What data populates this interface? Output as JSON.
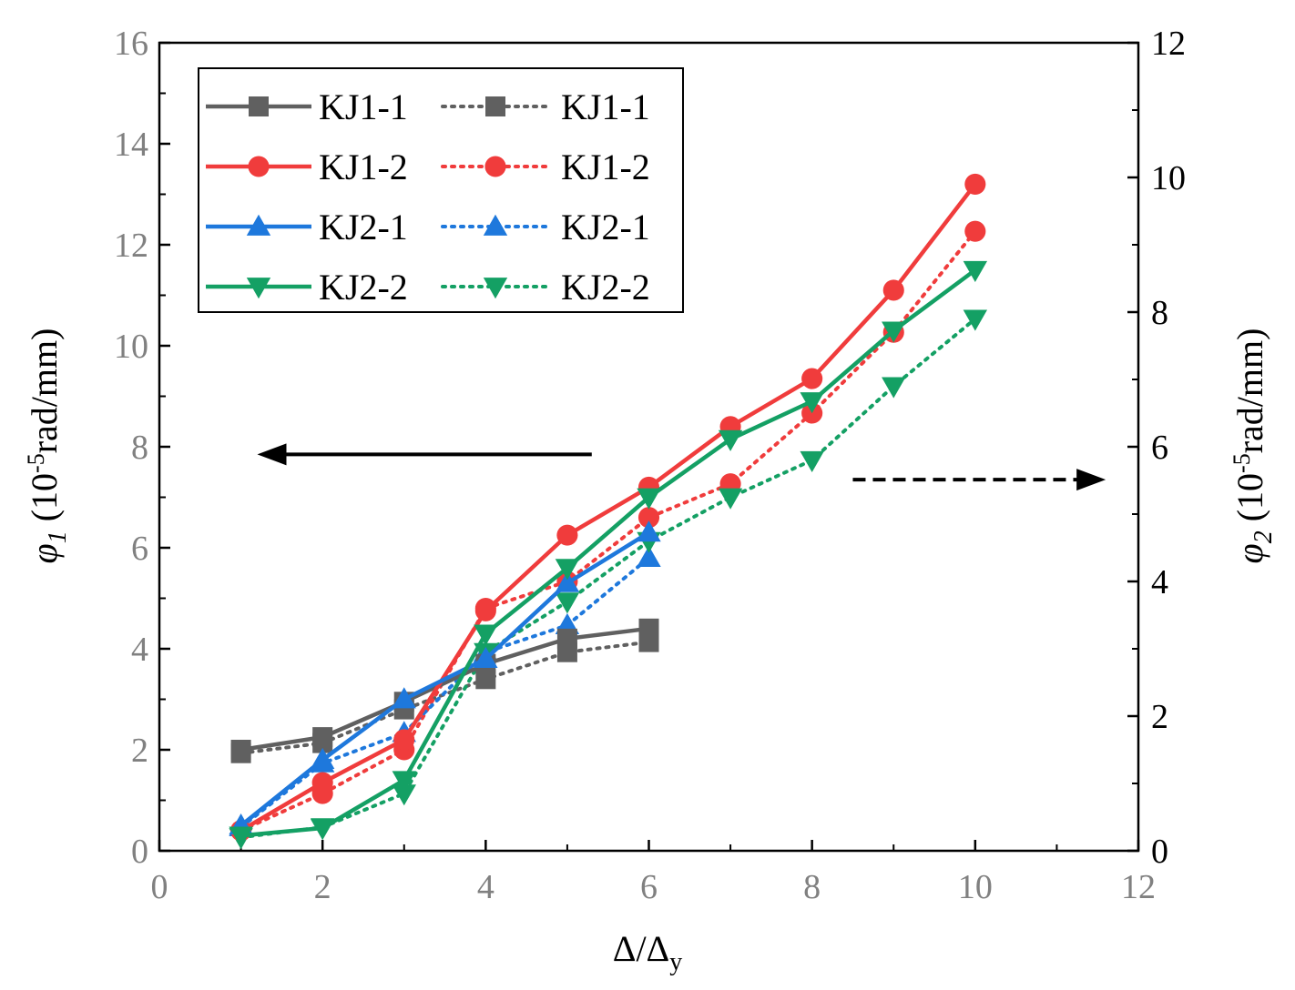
{
  "chart_data": {
    "type": "line",
    "xlabel": "Δ/Δy",
    "xlabel_parts": {
      "main": "Δ/Δ",
      "sub": "y"
    },
    "ylabel_left_parts": {
      "symbol": "φ",
      "sub": "1",
      "open": " (10",
      "sup": "-5",
      "close": "rad/mm)"
    },
    "ylabel_right_parts": {
      "symbol": "φ",
      "sub": "2",
      "open": " (10",
      "sup": "-5",
      "close": "rad/mm)"
    },
    "xlim": [
      0,
      12
    ],
    "ylim_left": [
      0,
      16
    ],
    "ylim_right": [
      0,
      12
    ],
    "xticks": [
      "0",
      "2",
      "4",
      "6",
      "8",
      "10",
      "12"
    ],
    "yticks_left": [
      "0",
      "2",
      "4",
      "6",
      "8",
      "10",
      "12",
      "14",
      "16"
    ],
    "yticks_right": [
      "0",
      "2",
      "4",
      "6",
      "8",
      "10",
      "12"
    ],
    "annotations": [
      {
        "type": "arrow",
        "style": "solid",
        "direction": "left",
        "meaning": "left axis"
      },
      {
        "type": "arrow",
        "style": "dashed",
        "direction": "right",
        "meaning": "right axis"
      }
    ],
    "series": [
      {
        "name": "KJ1-1",
        "axis": "left",
        "line": "solid",
        "marker": "square",
        "color": "#606060",
        "x": [
          1,
          2,
          3,
          4,
          5,
          6
        ],
        "y": [
          2.0,
          2.25,
          2.95,
          3.7,
          4.2,
          4.4
        ]
      },
      {
        "name": "KJ1-2",
        "axis": "left",
        "line": "solid",
        "marker": "circle",
        "color": "#f03c3c",
        "x": [
          1,
          2,
          3,
          4,
          5,
          6,
          7,
          8,
          9,
          10
        ],
        "y": [
          0.4,
          1.35,
          2.2,
          4.75,
          6.25,
          7.2,
          8.4,
          9.35,
          11.1,
          13.2
        ]
      },
      {
        "name": "KJ2-1",
        "axis": "left",
        "line": "solid",
        "marker": "triangle-up",
        "color": "#1e78dc",
        "x": [
          1,
          2,
          3,
          4,
          5,
          6
        ],
        "y": [
          0.5,
          1.8,
          3.0,
          3.8,
          5.3,
          6.3
        ]
      },
      {
        "name": "KJ2-2",
        "axis": "left",
        "line": "solid",
        "marker": "triangle-down",
        "color": "#14a064",
        "x": [
          1,
          2,
          3,
          4,
          5,
          6,
          7,
          8,
          9,
          10
        ],
        "y": [
          0.3,
          0.45,
          1.4,
          4.3,
          5.6,
          7.0,
          8.15,
          8.9,
          10.3,
          11.5
        ]
      },
      {
        "name": "KJ1-1",
        "axis": "right",
        "line": "dotted",
        "marker": "square",
        "color": "#606060",
        "x": [
          1,
          2,
          3,
          4,
          5,
          6
        ],
        "y": [
          1.45,
          1.6,
          2.1,
          2.55,
          2.95,
          3.1
        ]
      },
      {
        "name": "KJ1-2",
        "axis": "right",
        "line": "dotted",
        "marker": "circle",
        "color": "#f03c3c",
        "x": [
          1,
          2,
          3,
          4,
          5,
          6,
          7,
          8,
          9,
          10
        ],
        "y": [
          0.3,
          0.85,
          1.5,
          3.6,
          4.0,
          4.95,
          5.45,
          6.5,
          7.7,
          9.2
        ]
      },
      {
        "name": "KJ2-1",
        "axis": "right",
        "line": "dotted",
        "marker": "triangle-up",
        "color": "#1e78dc",
        "x": [
          1,
          2,
          3,
          4,
          5,
          6
        ],
        "y": [
          0.35,
          1.3,
          1.75,
          2.95,
          3.35,
          4.35
        ]
      },
      {
        "name": "KJ2-2",
        "axis": "right",
        "line": "dotted",
        "marker": "triangle-down",
        "color": "#14a064",
        "x": [
          1,
          2,
          3,
          4,
          5,
          6,
          7,
          8,
          9,
          10
        ],
        "y": [
          0.2,
          0.35,
          0.85,
          2.95,
          3.7,
          4.6,
          5.25,
          5.8,
          6.9,
          7.9
        ]
      }
    ],
    "legend": {
      "placement": "top-left",
      "columns": 2,
      "entries": [
        "KJ1-1",
        "KJ1-1",
        "KJ1-2",
        "KJ1-2",
        "KJ2-1",
        "KJ2-1",
        "KJ2-2",
        "KJ2-2"
      ]
    }
  }
}
